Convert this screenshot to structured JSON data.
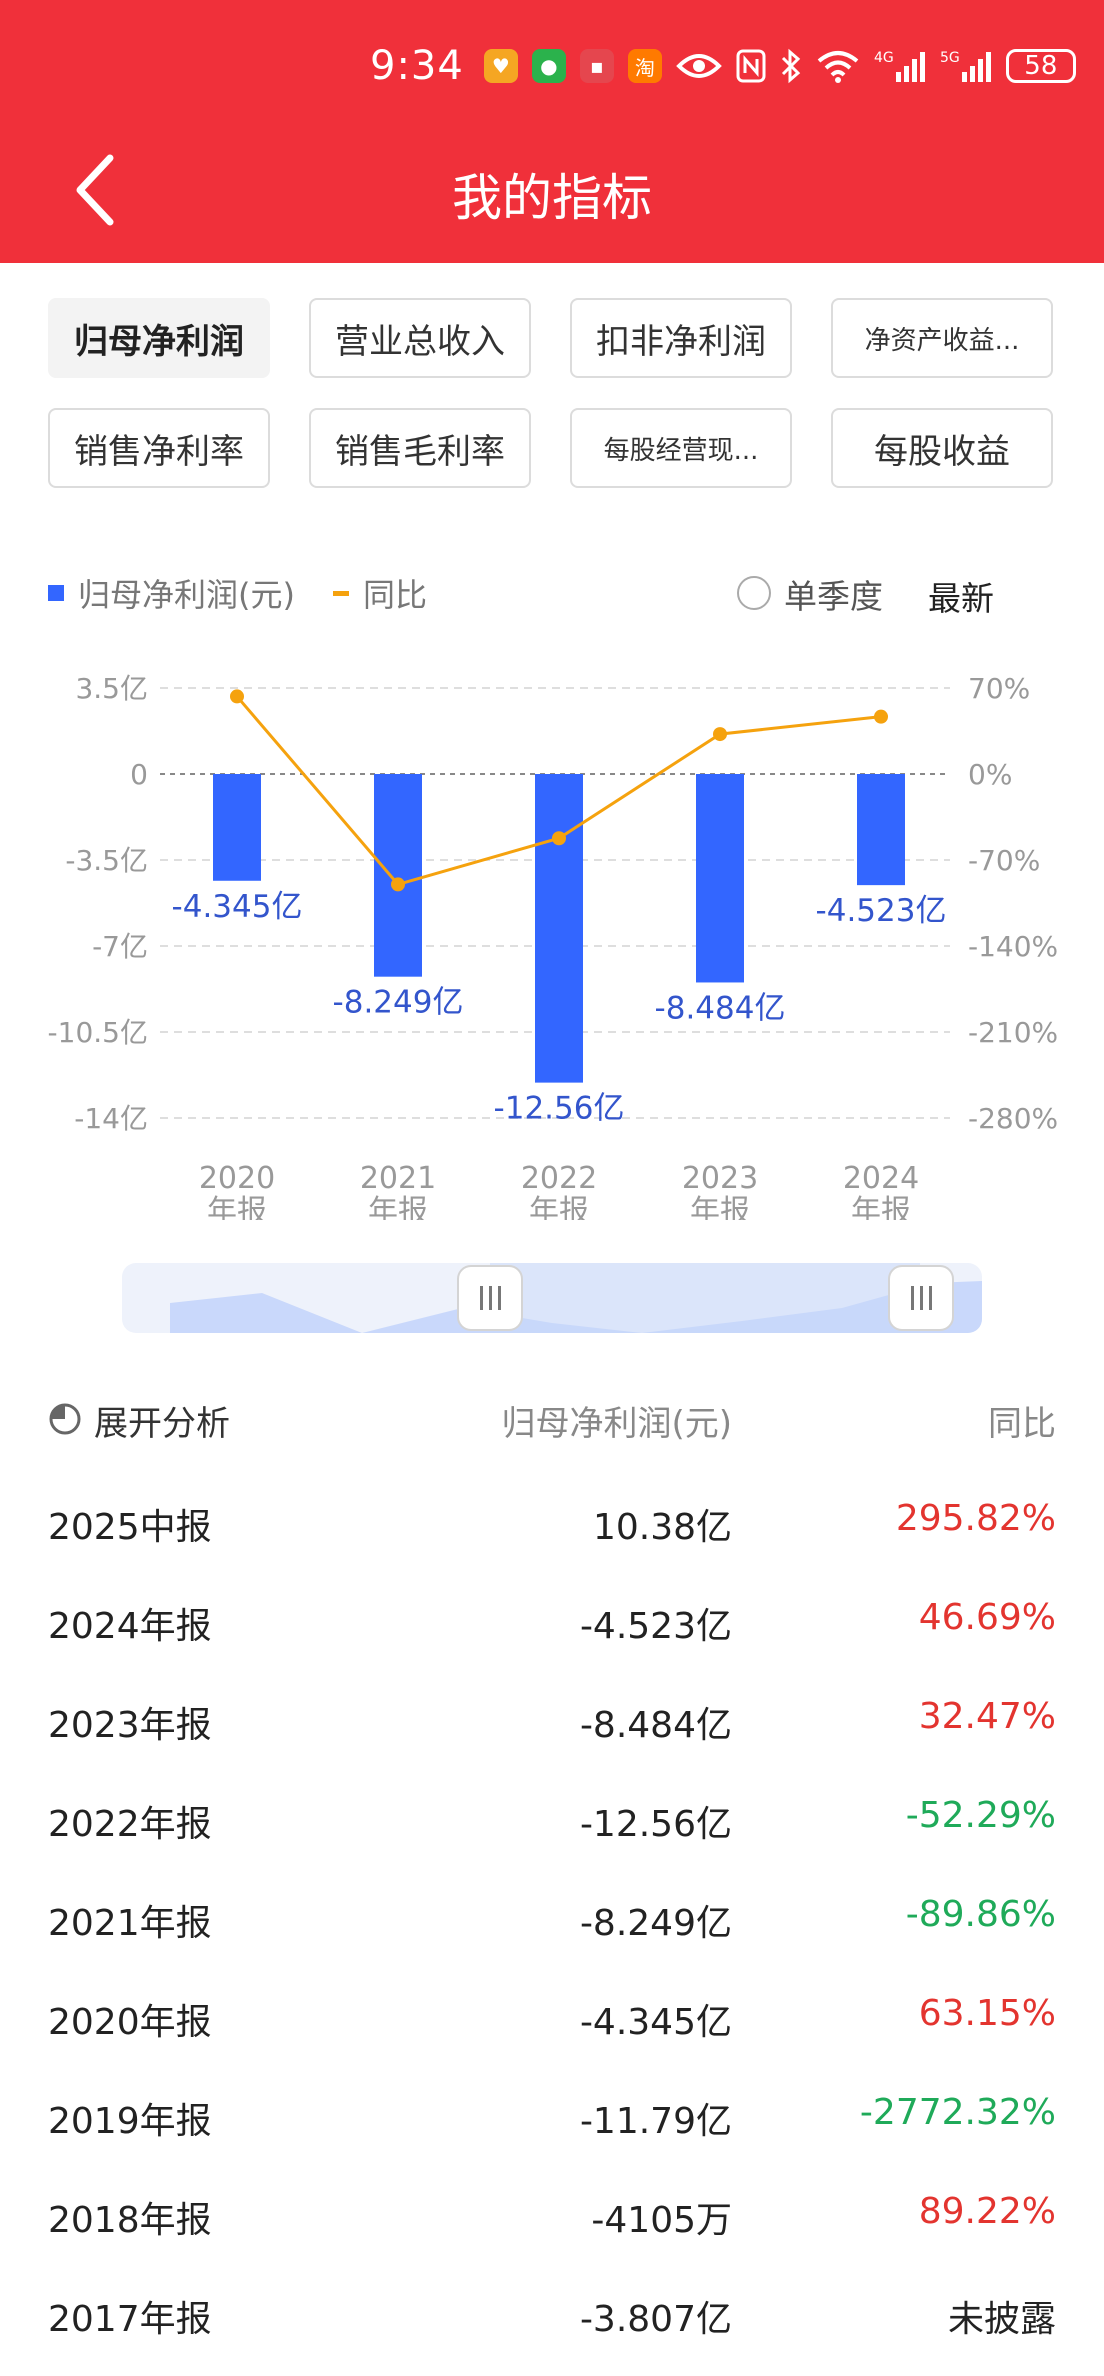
{
  "status": {
    "time": "9:34",
    "battery": "58",
    "net1": "4G",
    "net2": "5G"
  },
  "header": {
    "title": "我的指标"
  },
  "tabs": [
    {
      "label": "归母净利润",
      "active": true
    },
    {
      "label": "营业总收入"
    },
    {
      "label": "扣非净利润"
    },
    {
      "label": "净资产收益..."
    },
    {
      "label": "销售净利率"
    },
    {
      "label": "销售毛利率"
    },
    {
      "label": "每股经营现..."
    },
    {
      "label": "每股收益"
    }
  ],
  "legend": {
    "bar": "归母净利润(元)",
    "line": "同比",
    "single_quarter": "单季度",
    "latest": "最新"
  },
  "chart_data": {
    "type": "bar+line",
    "categories": [
      "2020\n年报",
      "2021\n年报",
      "2022\n年报",
      "2023\n年报",
      "2024\n年报"
    ],
    "series": [
      {
        "name": "归母净利润(元)",
        "values": [
          -4.345,
          -8.249,
          -12.56,
          -8.484,
          -4.523
        ],
        "labels": [
          "-4.345亿",
          "-8.249亿",
          "-12.56亿",
          "-8.484亿",
          "-4.523亿"
        ],
        "color": "#3366ff"
      },
      {
        "name": "同比",
        "values": [
          63.15,
          -89.86,
          -52.29,
          32.47,
          46.69
        ],
        "color": "#f5a20e"
      }
    ],
    "y_left": {
      "ticks": [
        "3.5亿",
        "0",
        "-3.5亿",
        "-7亿",
        "-10.5亿",
        "-14亿"
      ],
      "range": [
        -14,
        3.5
      ]
    },
    "y_right": {
      "ticks": [
        "70%",
        "0%",
        "-70%",
        "-140%",
        "-210%",
        "-280%"
      ],
      "range": [
        -280,
        70
      ]
    },
    "x_tick_labels": [
      [
        "2020",
        "年报"
      ],
      [
        "2021",
        "年报"
      ],
      [
        "2022",
        "年报"
      ],
      [
        "2023",
        "年报"
      ],
      [
        "2024",
        "年报"
      ]
    ]
  },
  "table": {
    "expand_label": "展开分析",
    "col_value": "归母净利润(元)",
    "col_yoy": "同比",
    "rows": [
      {
        "period": "2025中报",
        "value": "10.38亿",
        "yoy": "295.82%",
        "dir": "red"
      },
      {
        "period": "2024年报",
        "value": "-4.523亿",
        "yoy": "46.69%",
        "dir": "red"
      },
      {
        "period": "2023年报",
        "value": "-8.484亿",
        "yoy": "32.47%",
        "dir": "red"
      },
      {
        "period": "2022年报",
        "value": "-12.56亿",
        "yoy": "-52.29%",
        "dir": "green"
      },
      {
        "period": "2021年报",
        "value": "-8.249亿",
        "yoy": "-89.86%",
        "dir": "green"
      },
      {
        "period": "2020年报",
        "value": "-4.345亿",
        "yoy": "63.15%",
        "dir": "red"
      },
      {
        "period": "2019年报",
        "value": "-11.79亿",
        "yoy": "-2772.32%",
        "dir": "green"
      },
      {
        "period": "2018年报",
        "value": "-4105万",
        "yoy": "89.22%",
        "dir": "red"
      },
      {
        "period": "2017年报",
        "value": "-3.807亿",
        "yoy": "未披露",
        "dir": "dark"
      }
    ]
  }
}
